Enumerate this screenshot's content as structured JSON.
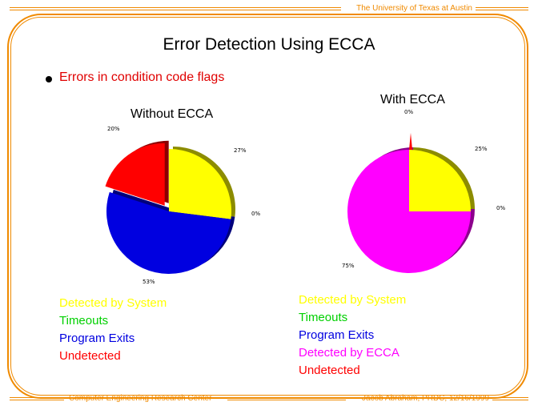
{
  "header": {
    "university": "The University of Texas at Austin"
  },
  "footer": {
    "center": "Computer Engineering Research Center",
    "author": "Jacob Abraham, PRDC, 12/16/1999"
  },
  "slide": {
    "title": "Error Detection Using ECCA",
    "bullet": "Errors in condition code flags"
  },
  "colors": {
    "accent": "#f08a00",
    "detected_by_system": "#ffff00",
    "timeouts": "#00d000",
    "program_exits": "#0000e0",
    "detected_by_ecca": "#ff00ff",
    "undetected": "#ff0000"
  },
  "chart_data": [
    {
      "type": "pie",
      "title": "Without ECCA",
      "categories": [
        "Detected by System",
        "Timeouts",
        "Program Exits",
        "Undetected"
      ],
      "values": [
        27,
        0,
        53,
        20
      ],
      "labels": [
        "27%",
        "0%",
        "53%",
        "20%"
      ],
      "exploded": [
        "Undetected"
      ]
    },
    {
      "type": "pie",
      "title": "With ECCA",
      "categories": [
        "Detected by System",
        "Timeouts",
        "Program Exits",
        "Detected by ECCA",
        "Undetected"
      ],
      "values": [
        25,
        0,
        0,
        75,
        0
      ],
      "labels": [
        "25%",
        "0%",
        "",
        "75%",
        "0%"
      ]
    }
  ]
}
